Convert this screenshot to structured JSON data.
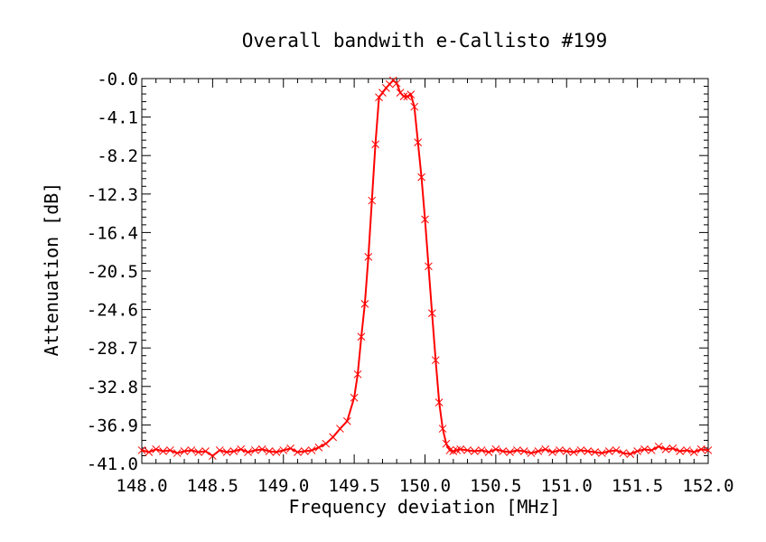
{
  "chart_data": {
    "type": "line",
    "title": "Overall bandwith e-Callisto #199",
    "xlabel": "Frequency deviation [MHz]",
    "ylabel": "Attenuation [dB]",
    "xlim": [
      148.0,
      152.0
    ],
    "ylim": [
      -41.0,
      0.0
    ],
    "x_ticks": [
      "148.0",
      "148.5",
      "149.0",
      "149.5",
      "150.0",
      "150.5",
      "151.0",
      "151.5",
      "152.0"
    ],
    "x_tick_values": [
      148.0,
      148.5,
      149.0,
      149.5,
      150.0,
      150.5,
      151.0,
      151.5,
      152.0
    ],
    "y_ticks": [
      "-0.0",
      "-4.1",
      "-8.2",
      "-12.3",
      "-16.4",
      "-20.5",
      "-24.6",
      "-28.7",
      "-32.8",
      "-36.9",
      "-41.0"
    ],
    "y_tick_values": [
      0.0,
      -4.1,
      -8.2,
      -12.3,
      -16.4,
      -20.5,
      -24.6,
      -28.7,
      -32.8,
      -36.9,
      -41.0
    ],
    "grid": false,
    "legend": "none",
    "line_color": "#ff0000",
    "marker": "x",
    "series": [
      {
        "x": [
          148.0,
          148.05,
          148.1,
          148.15,
          148.2,
          148.25,
          148.3,
          148.35,
          148.4,
          148.45,
          148.5,
          148.55,
          148.6,
          148.65,
          148.7,
          148.75,
          148.8,
          148.85,
          148.9,
          148.95,
          149.0,
          149.05,
          149.1,
          149.15,
          149.2,
          149.25,
          149.3,
          149.35,
          149.4,
          149.45,
          149.5,
          149.525,
          149.55,
          149.575,
          149.6,
          149.625,
          149.65,
          149.675,
          149.7,
          149.725,
          149.75,
          149.775,
          149.8,
          149.825,
          149.85,
          149.875,
          149.9,
          149.925,
          149.95,
          149.975,
          150.0,
          150.025,
          150.05,
          150.075,
          150.1,
          150.125,
          150.15,
          150.175,
          150.2,
          150.225,
          150.25,
          150.3,
          150.35,
          150.4,
          150.45,
          150.5,
          150.55,
          150.6,
          150.65,
          150.7,
          150.75,
          150.8,
          150.85,
          150.9,
          150.95,
          151.0,
          151.05,
          151.1,
          151.15,
          151.2,
          151.25,
          151.3,
          151.35,
          151.4,
          151.45,
          151.5,
          151.55,
          151.6,
          151.65,
          151.7,
          151.75,
          151.8,
          151.85,
          151.9,
          151.95,
          152.0
        ],
        "y": [
          -39.6,
          -39.8,
          -39.5,
          -39.7,
          -39.6,
          -39.9,
          -39.7,
          -39.6,
          -39.8,
          -39.7,
          -40.2,
          -39.6,
          -39.8,
          -39.7,
          -39.5,
          -39.8,
          -39.6,
          -39.5,
          -39.7,
          -39.8,
          -39.6,
          -39.4,
          -39.8,
          -39.7,
          -39.6,
          -39.3,
          -38.9,
          -38.2,
          -37.3,
          -36.5,
          -34.0,
          -31.5,
          -27.5,
          -24.0,
          -19.0,
          -13.0,
          -7.0,
          -2.0,
          -1.5,
          -1.0,
          -0.6,
          -0.2,
          -0.5,
          -1.5,
          -1.9,
          -1.9,
          -1.7,
          -3.0,
          -6.8,
          -10.5,
          -15.0,
          -20.0,
          -25.0,
          -30.0,
          -34.5,
          -37.3,
          -38.9,
          -39.6,
          -39.7,
          -39.6,
          -39.5,
          -39.6,
          -39.7,
          -39.6,
          -39.8,
          -39.5,
          -39.7,
          -39.8,
          -39.6,
          -39.7,
          -39.9,
          -39.7,
          -39.5,
          -39.8,
          -39.6,
          -39.7,
          -39.8,
          -39.6,
          -39.7,
          -39.8,
          -39.9,
          -39.7,
          -39.6,
          -39.9,
          -40.0,
          -39.7,
          -39.5,
          -39.6,
          -39.2,
          -39.5,
          -39.4,
          -39.7,
          -39.6,
          -39.8,
          -39.5,
          -39.6
        ]
      }
    ]
  }
}
